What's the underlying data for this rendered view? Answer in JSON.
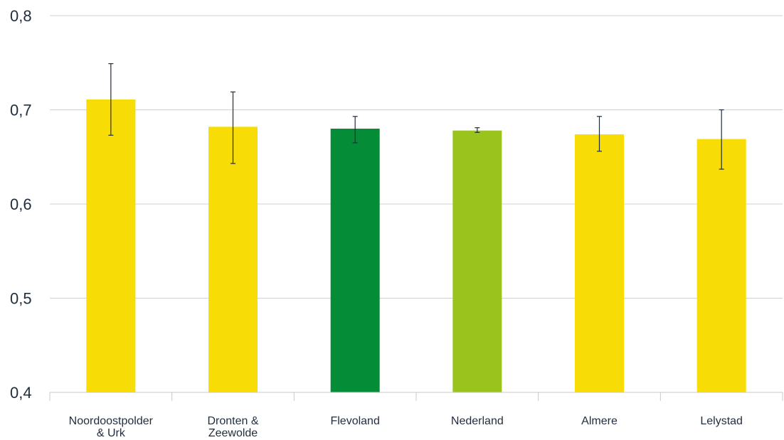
{
  "chart_data": {
    "type": "bar",
    "categories": [
      [
        "Noordoostpolder",
        "& Urk"
      ],
      [
        "Dronten &",
        "Zeewolde"
      ],
      [
        "Flevoland"
      ],
      [
        "Nederland"
      ],
      [
        "Almere"
      ],
      [
        "Lelystad"
      ]
    ],
    "values": [
      0.711,
      0.682,
      0.68,
      0.678,
      0.674,
      0.669
    ],
    "error_low": [
      0.673,
      0.643,
      0.665,
      0.676,
      0.656,
      0.637
    ],
    "error_high": [
      0.749,
      0.719,
      0.693,
      0.681,
      0.693,
      0.7
    ],
    "colors": [
      "#f8dc05",
      "#f8dc05",
      "#058c37",
      "#9bc31e",
      "#f8dc05",
      "#f8dc05"
    ],
    "y_ticks": [
      "0,4",
      "0,5",
      "0,6",
      "0,7",
      "0,8"
    ],
    "ylim": [
      0.4,
      0.8
    ],
    "grid": true,
    "title": "",
    "xlabel": "",
    "ylabel": ""
  }
}
